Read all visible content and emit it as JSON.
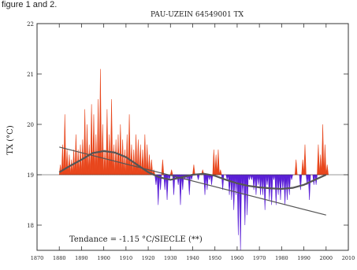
{
  "page": {
    "caption": "figure 1 and 2."
  },
  "colors": {
    "positive": "#e8461c",
    "negative": "#5a1fd6",
    "trend": "#555555",
    "axis": "#333333",
    "background": "#ffffff"
  },
  "chart_data": {
    "type": "area",
    "title": "PAU-UZEIN 64549001 TX",
    "xlabel": "",
    "ylabel": "TX (°C)",
    "xlim": [
      1870,
      2010
    ],
    "ylim": [
      17.5,
      22
    ],
    "baseline": 19,
    "xticks": [
      1870,
      1880,
      1890,
      1900,
      1910,
      1920,
      1930,
      1940,
      1950,
      1960,
      1970,
      1980,
      1990,
      2000,
      2010
    ],
    "yticks": [
      18,
      19,
      20,
      21,
      22
    ],
    "annotation": "Tendance = -1.15 °C/SIECLE (**)",
    "grid": false,
    "series": [
      {
        "x": [
          1880,
          1881,
          1882,
          1883,
          1884,
          1885,
          1886,
          1887,
          1888,
          1889,
          1890,
          1891,
          1892,
          1893,
          1894,
          1895,
          1896,
          1897,
          1898,
          1899,
          1900,
          1901,
          1902,
          1903,
          1904,
          1905,
          1906,
          1907,
          1908,
          1909,
          1910,
          1911,
          1912,
          1913,
          1914,
          1915,
          1916,
          1917,
          1918,
          1919,
          1920,
          1921,
          1922,
          1923,
          1924,
          1925,
          1926,
          1927,
          1928,
          1929,
          1930,
          1931,
          1932,
          1933,
          1934,
          1935,
          1936,
          1937,
          1938,
          1939,
          1940,
          1941,
          1942,
          1943,
          1944,
          1945,
          1946,
          1947,
          1948,
          1949,
          1950,
          1951,
          1952,
          1953,
          1954,
          1955,
          1956,
          1957,
          1958,
          1959,
          1960,
          1961,
          1962,
          1963,
          1964,
          1965,
          1966,
          1967,
          1968,
          1969,
          1970,
          1971,
          1972,
          1973,
          1974,
          1975,
          1976,
          1977,
          1978,
          1979,
          1980,
          1981,
          1982,
          1983,
          1984,
          1985,
          1986,
          1987,
          1988,
          1989,
          1990,
          1991,
          1992,
          1993,
          1994,
          1995,
          1996,
          1997,
          1998,
          1999,
          2000
        ],
        "values": [
          19.2,
          19.6,
          20.2,
          19.5,
          19.4,
          19.3,
          19.5,
          19.8,
          19.5,
          19.6,
          19.7,
          20.3,
          20.0,
          19.6,
          20.4,
          20.2,
          19.8,
          20.5,
          21.1,
          20.0,
          19.5,
          20.3,
          19.8,
          20.5,
          19.6,
          19.7,
          19.8,
          20.0,
          19.7,
          19.5,
          19.8,
          20.2,
          19.6,
          19.5,
          19.8,
          19.7,
          19.6,
          19.5,
          19.8,
          19.6,
          19.4,
          19.3,
          19.1,
          18.8,
          18.4,
          18.7,
          19.3,
          18.7,
          18.5,
          18.9,
          19.1,
          18.6,
          18.9,
          18.8,
          18.4,
          18.7,
          18.9,
          18.9,
          18.6,
          18.9,
          19.2,
          19.0,
          18.9,
          19.0,
          19.1,
          18.6,
          18.7,
          18.9,
          18.8,
          19.5,
          19.4,
          19.5,
          19.1,
          18.7,
          19.0,
          18.9,
          18.6,
          18.5,
          18.3,
          18.6,
          17.8,
          17.5,
          18.6,
          18.0,
          18.2,
          18.9,
          18.9,
          18.7,
          18.6,
          18.8,
          18.6,
          18.6,
          18.3,
          18.8,
          18.5,
          18.4,
          18.9,
          18.4,
          18.6,
          18.5,
          18.7,
          18.4,
          18.5,
          18.6,
          18.9,
          19.0,
          19.3,
          19.0,
          18.7,
          19.3,
          19.6,
          18.8,
          18.5,
          19.0,
          18.8,
          18.8,
          19.6,
          19.4,
          20.0,
          19.6,
          19.2
        ]
      }
    ],
    "trend_curve": {
      "x": [
        1880,
        1885,
        1890,
        1895,
        1900,
        1905,
        1910,
        1915,
        1920,
        1925,
        1930,
        1935,
        1940,
        1945,
        1950,
        1955,
        1960,
        1965,
        1970,
        1975,
        1980,
        1985,
        1990,
        1995,
        2000
      ],
      "values": [
        19.05,
        19.18,
        19.3,
        19.43,
        19.47,
        19.44,
        19.35,
        19.2,
        19.05,
        18.95,
        18.9,
        18.95,
        19.0,
        19.02,
        18.98,
        18.9,
        18.83,
        18.78,
        18.75,
        18.73,
        18.72,
        18.74,
        18.8,
        18.9,
        19.0
      ]
    },
    "trend_line": {
      "x": [
        1880,
        2000
      ],
      "values": [
        19.55,
        18.2
      ]
    }
  }
}
